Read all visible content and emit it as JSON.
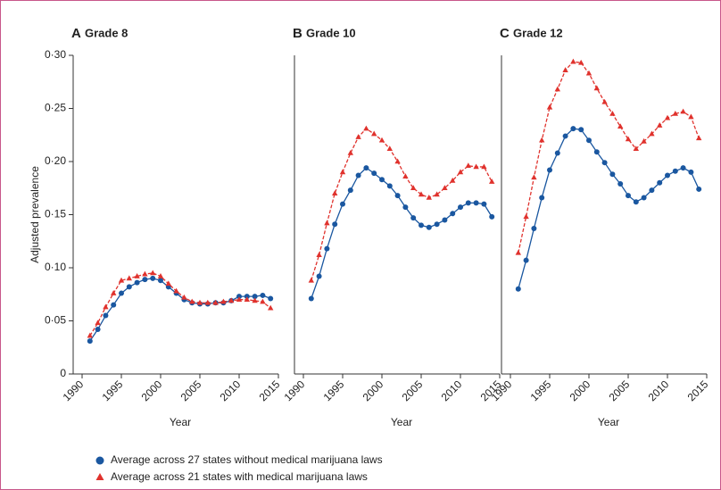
{
  "chart_data": [
    {
      "type": "line",
      "panel": "A",
      "title": "Grade 8",
      "ylabel": "Adjusted prevalence",
      "xlabel": "Year",
      "x": [
        1991,
        1992,
        1993,
        1994,
        1995,
        1996,
        1997,
        1998,
        1999,
        2000,
        2001,
        2002,
        2003,
        2004,
        2005,
        2006,
        2007,
        2008,
        2009,
        2010,
        2011,
        2012,
        2013,
        2014
      ],
      "xlim": [
        1990,
        2015
      ],
      "xticks": [
        1990,
        1995,
        2000,
        2005,
        2010,
        2015
      ],
      "ylim": [
        0,
        0.3
      ],
      "yticks": [
        0,
        {
          "value": 0.05,
          "label": "0·05"
        },
        {
          "value": 0.1,
          "label": "0·10"
        },
        {
          "value": 0.15,
          "label": "0·15"
        },
        {
          "value": 0.2,
          "label": "0·20"
        },
        {
          "value": 0.25,
          "label": "0·25"
        },
        {
          "value": 0.3,
          "label": "0·30"
        }
      ],
      "series": [
        {
          "name": "Average across 27 states without medical marijuana laws",
          "color": "#1a57a0",
          "marker": "circle",
          "linestyle": "solid",
          "values": [
            0.031,
            0.042,
            0.055,
            0.065,
            0.076,
            0.082,
            0.086,
            0.089,
            0.09,
            0.088,
            0.082,
            0.076,
            0.07,
            0.067,
            0.066,
            0.066,
            0.067,
            0.067,
            0.069,
            0.073,
            0.073,
            0.073,
            0.074,
            0.071
          ]
        },
        {
          "name": "Average across 21 states with medical marijuana laws",
          "color": "#e0322d",
          "marker": "triangle",
          "linestyle": "dashed",
          "values": [
            0.036,
            0.048,
            0.063,
            0.076,
            0.088,
            0.09,
            0.092,
            0.094,
            0.095,
            0.092,
            0.085,
            0.078,
            0.072,
            0.068,
            0.067,
            0.067,
            0.067,
            0.068,
            0.069,
            0.07,
            0.07,
            0.069,
            0.068,
            0.062
          ]
        }
      ]
    },
    {
      "type": "line",
      "panel": "B",
      "title": "Grade 10",
      "xlabel": "Year",
      "x": [
        1991,
        1992,
        1993,
        1994,
        1995,
        1996,
        1997,
        1998,
        1999,
        2000,
        2001,
        2002,
        2003,
        2004,
        2005,
        2006,
        2007,
        2008,
        2009,
        2010,
        2011,
        2012,
        2013,
        2014
      ],
      "xlim": [
        1990,
        2015
      ],
      "xticks": [
        1990,
        1995,
        2000,
        2005,
        2010,
        2015
      ],
      "ylim": [
        0,
        0.3
      ],
      "series": [
        {
          "color": "#1a57a0",
          "marker": "circle",
          "linestyle": "solid",
          "values": [
            0.071,
            0.092,
            0.118,
            0.141,
            0.16,
            0.173,
            0.187,
            0.194,
            0.189,
            0.183,
            0.177,
            0.168,
            0.157,
            0.147,
            0.14,
            0.138,
            0.141,
            0.145,
            0.151,
            0.157,
            0.161,
            0.161,
            0.16,
            0.148
          ]
        },
        {
          "color": "#e0322d",
          "marker": "triangle",
          "linestyle": "dashed",
          "values": [
            0.088,
            0.112,
            0.142,
            0.17,
            0.19,
            0.208,
            0.223,
            0.231,
            0.226,
            0.22,
            0.212,
            0.2,
            0.186,
            0.175,
            0.169,
            0.166,
            0.169,
            0.175,
            0.182,
            0.19,
            0.196,
            0.195,
            0.195,
            0.181
          ]
        }
      ]
    },
    {
      "type": "line",
      "panel": "C",
      "title": "Grade 12",
      "xlabel": "Year",
      "x": [
        1991,
        1992,
        1993,
        1994,
        1995,
        1996,
        1997,
        1998,
        1999,
        2000,
        2001,
        2002,
        2003,
        2004,
        2005,
        2006,
        2007,
        2008,
        2009,
        2010,
        2011,
        2012,
        2013,
        2014
      ],
      "xlim": [
        1990,
        2015
      ],
      "xticks": [
        1990,
        1995,
        2000,
        2005,
        2010,
        2015
      ],
      "ylim": [
        0,
        0.3
      ],
      "series": [
        {
          "color": "#1a57a0",
          "marker": "circle",
          "linestyle": "solid",
          "values": [
            0.08,
            0.107,
            0.137,
            0.166,
            0.192,
            0.208,
            0.224,
            0.231,
            0.23,
            0.22,
            0.209,
            0.199,
            0.188,
            0.179,
            0.168,
            0.162,
            0.166,
            0.173,
            0.18,
            0.187,
            0.191,
            0.194,
            0.19,
            0.174
          ]
        },
        {
          "color": "#e0322d",
          "marker": "triangle",
          "linestyle": "dashed",
          "values": [
            0.114,
            0.148,
            0.185,
            0.22,
            0.251,
            0.268,
            0.286,
            0.294,
            0.293,
            0.283,
            0.269,
            0.256,
            0.245,
            0.233,
            0.221,
            0.212,
            0.219,
            0.226,
            0.234,
            0.241,
            0.245,
            0.247,
            0.242,
            0.222
          ]
        }
      ]
    }
  ]
}
